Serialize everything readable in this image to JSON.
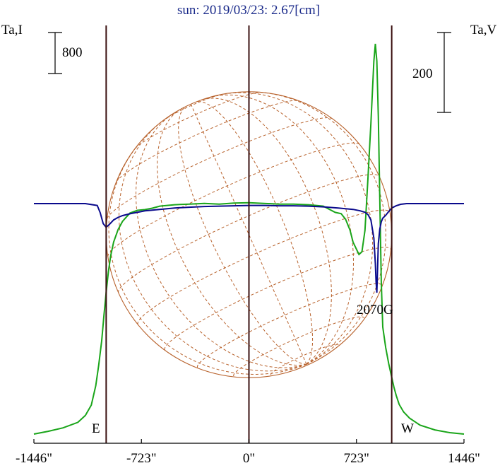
{
  "title": "sun: 2019/03/23: 2.67[cm]",
  "left_axis_label": "Ta,I",
  "right_axis_label": "Ta,V",
  "scale_bar_left": "800",
  "scale_bar_right": "200",
  "annotation": "2070G",
  "east_label": "E",
  "west_label": "W",
  "colors": {
    "stokes_i": "#1aa51a",
    "stokes_v": "#0a0a8c",
    "grid": "#b8622c",
    "limb_lines": "#3a1010",
    "title": "#1a2a8a"
  },
  "chart_data": {
    "type": "line",
    "title": "sun: 2019/03/23: 2.67[cm]",
    "x_unit": "arcsec",
    "xlim": [
      -1446,
      1446
    ],
    "x_ticks": [
      -1446,
      -723,
      0,
      723,
      1446
    ],
    "x_tick_labels": [
      "-1446\"",
      "-723\"",
      "0\"",
      "723\"",
      "1446\""
    ],
    "limb_positions": [
      -960,
      0,
      960
    ],
    "solar_radius_arcsec": 960,
    "series": [
      {
        "name": "Ta,I",
        "x": [
          -1446,
          -1350,
          -1250,
          -1150,
          -1100,
          -1060,
          -1030,
          -1010,
          -990,
          -975,
          -960,
          -945,
          -930,
          -910,
          -880,
          -850,
          -800,
          -750,
          -700,
          -650,
          -600,
          -500,
          -400,
          -300,
          -200,
          -100,
          0,
          100,
          200,
          300,
          400,
          500,
          580,
          620,
          650,
          680,
          700,
          740,
          760,
          780,
          800,
          820,
          840,
          850,
          860,
          870,
          880,
          890,
          900,
          920,
          940,
          960,
          975,
          990,
          1010,
          1040,
          1080,
          1150,
          1250,
          1350,
          1446
        ],
        "y": [
          0,
          40,
          90,
          170,
          270,
          420,
          700,
          1000,
          1350,
          1720,
          2050,
          2350,
          2580,
          2780,
          2960,
          3080,
          3200,
          3240,
          3250,
          3270,
          3300,
          3320,
          3330,
          3340,
          3330,
          3345,
          3350,
          3340,
          3330,
          3330,
          3320,
          3300,
          3210,
          3190,
          3110,
          2950,
          2780,
          2600,
          2640,
          2950,
          3700,
          4500,
          5400,
          5650,
          5400,
          4600,
          3400,
          2200,
          1550,
          1250,
          1020,
          820,
          680,
          560,
          430,
          320,
          230,
          130,
          60,
          20,
          0
        ]
      },
      {
        "name": "Ta,V",
        "x": [
          -1446,
          -1100,
          -1020,
          -1000,
          -980,
          -960,
          -940,
          -910,
          -880,
          -850,
          -800,
          -700,
          -600,
          -500,
          -400,
          -300,
          -200,
          -100,
          0,
          100,
          200,
          300,
          400,
          500,
          600,
          700,
          750,
          780,
          800,
          820,
          840,
          850,
          855,
          860,
          865,
          870,
          880,
          890,
          900,
          920,
          940,
          960,
          990,
          1020,
          1060,
          1150,
          1300,
          1446
        ],
        "y": [
          0,
          0,
          -5,
          -25,
          -55,
          -65,
          -58,
          -45,
          -38,
          -33,
          -28,
          -20,
          -16,
          -12,
          -10,
          -8,
          -7,
          -6,
          -5,
          -5,
          -6,
          -6,
          -7,
          -9,
          -12,
          -16,
          -20,
          -24,
          -30,
          -45,
          -95,
          -165,
          -215,
          -245,
          -175,
          -110,
          -70,
          -50,
          -40,
          -32,
          -22,
          -12,
          -6,
          -2,
          0,
          0,
          0,
          0
        ]
      }
    ],
    "annotations": [
      {
        "text": "2070G",
        "x": 880
      }
    ],
    "scale_bars": [
      {
        "axis": "Ta,I",
        "value": 800
      },
      {
        "axis": "Ta,V",
        "value": 200
      }
    ]
  }
}
